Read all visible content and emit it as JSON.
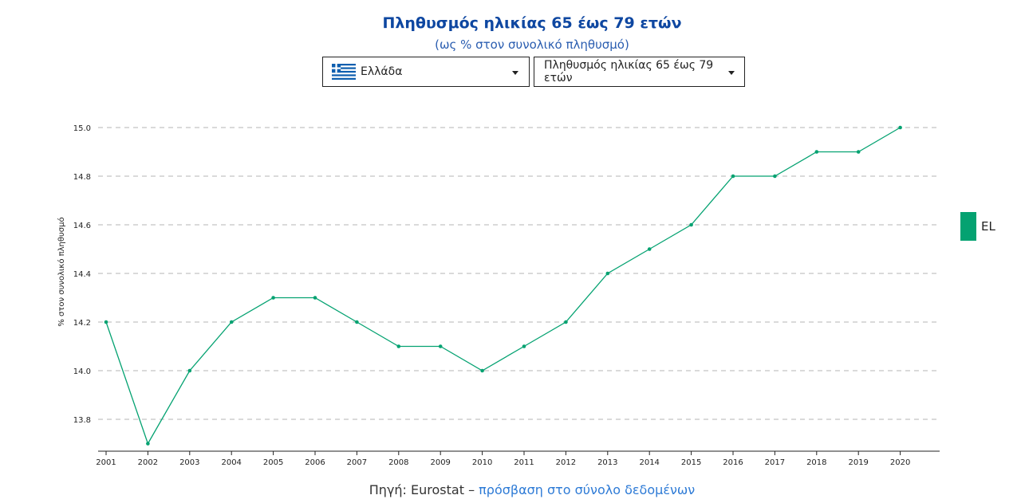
{
  "header": {
    "title": "Πληθυσμός ηλικίας 65 έως 79 ετών",
    "subtitle": "(ως % στον συνολικό πληθυσμό)"
  },
  "controls": {
    "country_dropdown": {
      "selected": "Ελλάδα",
      "flag_icon": "greece-flag-icon"
    },
    "indicator_dropdown": {
      "selected": "Πληθυσμός ηλικίας 65 έως 79 ετών"
    }
  },
  "legend": {
    "label": "EL",
    "color": "#04a271"
  },
  "source": {
    "prefix": "Πηγή: Eurostat –",
    "link_text": "πρόσβαση στο σύνολο δεδομένων"
  },
  "chart_data": {
    "type": "line",
    "title": "Πληθυσμός ηλικίας 65 έως 79 ετών",
    "subtitle": "(ως % στον συνολικό πληθυσμό)",
    "xlabel": "",
    "ylabel": "% στον συνολικό πληθυσμό",
    "x": [
      "2001",
      "2002",
      "2003",
      "2004",
      "2005",
      "2006",
      "2007",
      "2008",
      "2009",
      "2010",
      "2011",
      "2012",
      "2013",
      "2014",
      "2015",
      "2016",
      "2017",
      "2018",
      "2019",
      "2020"
    ],
    "series": [
      {
        "name": "EL",
        "color": "#04a271",
        "values": [
          14.2,
          13.7,
          14.0,
          14.2,
          14.3,
          14.3,
          14.2,
          14.1,
          14.1,
          14.0,
          14.1,
          14.2,
          14.4,
          14.5,
          14.6,
          14.8,
          14.8,
          14.9,
          14.9,
          15.0
        ]
      }
    ],
    "yticks": [
      "13.8",
      "14.0",
      "14.2",
      "14.4",
      "14.6",
      "14.8",
      "15.0"
    ],
    "ylim": [
      13.7,
      15.0
    ],
    "grid": "horizontal dashed",
    "legend_position": "right"
  }
}
